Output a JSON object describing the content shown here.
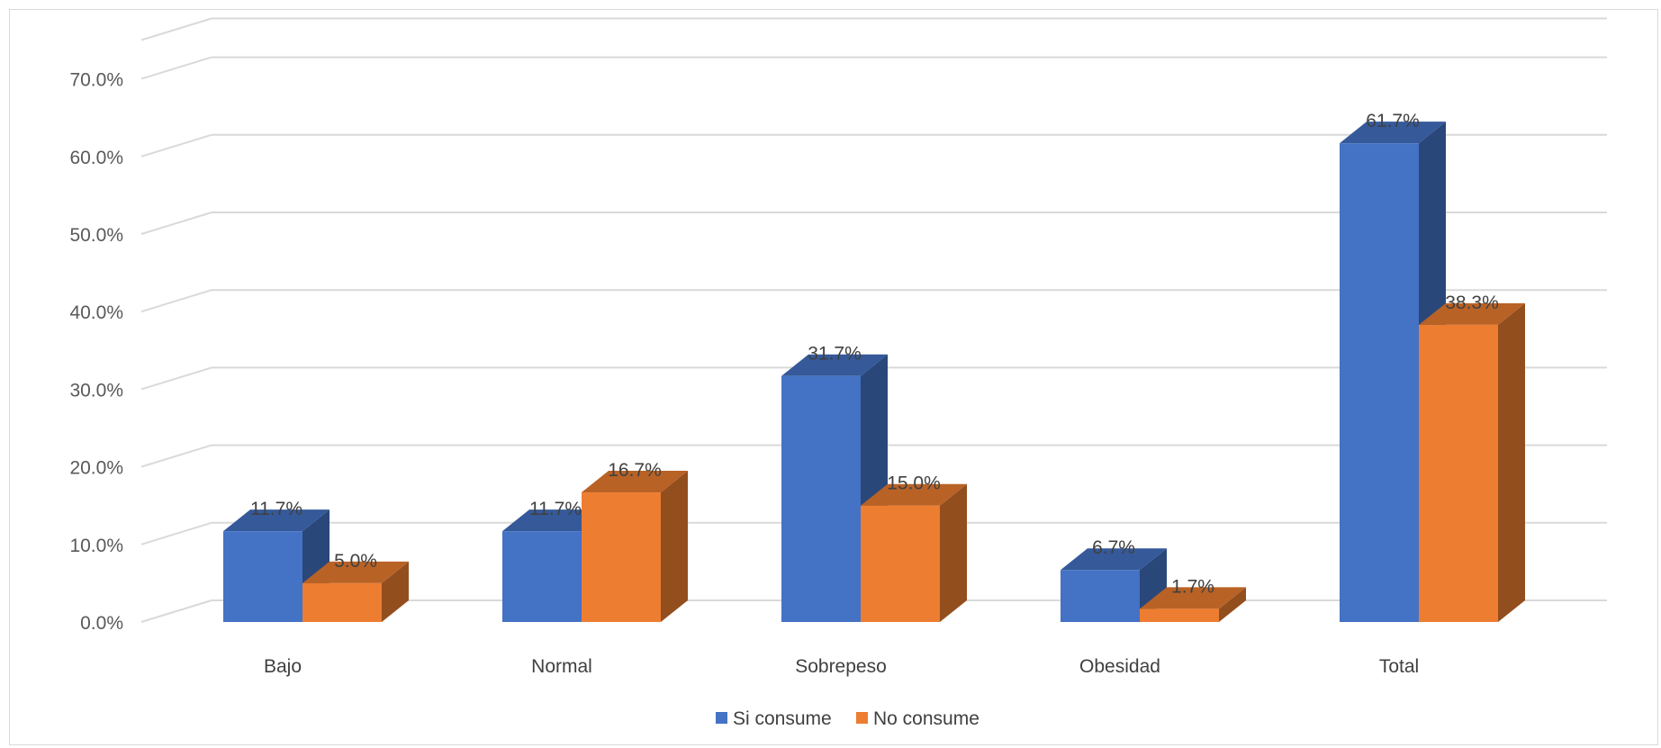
{
  "chart_data": {
    "type": "bar",
    "style": "3d-clustered-column",
    "categories": [
      "Bajo",
      "Normal",
      "Sobrepeso",
      "Obesidad",
      "Total"
    ],
    "series": [
      {
        "name": "Si consume",
        "values": [
          11.7,
          11.7,
          31.7,
          6.7,
          61.7
        ],
        "color": "#4472C4"
      },
      {
        "name": "No consume",
        "values": [
          5.0,
          16.7,
          15.0,
          1.7,
          38.3
        ],
        "color": "#ED7D31"
      }
    ],
    "data_labels": [
      [
        "11.7%",
        "11.7%",
        "31.7%",
        "6.7%",
        "61.7%"
      ],
      [
        "5.0%",
        "16.7%",
        "15.0%",
        "1.7%",
        "38.3%"
      ]
    ],
    "y_ticks": [
      "0.0%",
      "10.0%",
      "20.0%",
      "30.0%",
      "40.0%",
      "50.0%",
      "60.0%",
      "70.0%"
    ],
    "ylim": [
      0,
      70
    ],
    "grid": true,
    "legend_position": "bottom",
    "title": "",
    "xlabel": "",
    "ylabel": ""
  }
}
